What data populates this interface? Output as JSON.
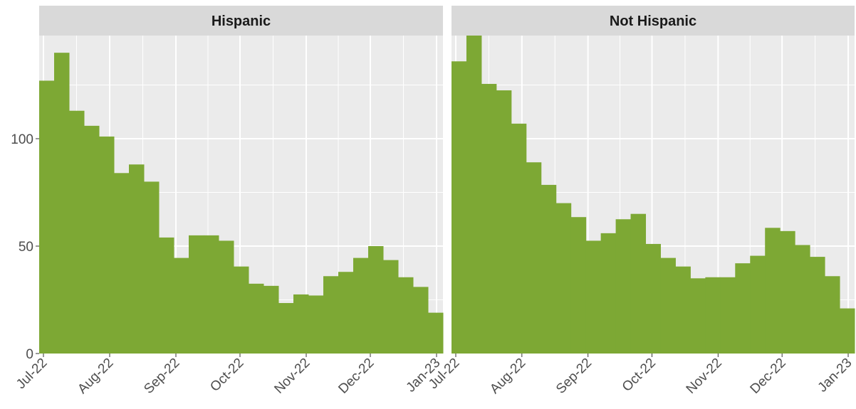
{
  "chart_data": [
    {
      "type": "histogram",
      "title": "Hispanic",
      "color": "#7da834",
      "bins": [
        -2,
        5,
        12,
        19,
        26,
        33,
        40,
        47,
        54,
        61,
        68,
        75,
        82,
        89,
        96,
        103,
        110,
        117,
        124,
        131,
        138,
        145,
        152,
        159,
        166,
        173,
        180,
        187
      ],
      "values": [
        127,
        140,
        113,
        106,
        101,
        84,
        88,
        80,
        54,
        44.5,
        55,
        55,
        52.5,
        40.5,
        32.5,
        31.5,
        23.5,
        27.5,
        27,
        36,
        38,
        44.5,
        50,
        43.5,
        35.5,
        31,
        19
      ],
      "xlim": [
        -2,
        187
      ],
      "xticks": [
        {
          "value": 0,
          "label": "Jul-22"
        },
        {
          "value": 31,
          "label": "Aug-22"
        },
        {
          "value": 62,
          "label": "Sep-22"
        },
        {
          "value": 92,
          "label": "Oct-22"
        },
        {
          "value": 123,
          "label": "Nov-22"
        },
        {
          "value": 153,
          "label": "Dec-22"
        },
        {
          "value": 184,
          "label": "Jan-23"
        }
      ],
      "ylim": [
        0,
        148
      ],
      "yticks": [
        0,
        50,
        100
      ],
      "grid": true
    },
    {
      "type": "histogram",
      "title": "Not Hispanic",
      "color": "#7da834",
      "bins": [
        -2,
        5,
        12,
        19,
        26,
        33,
        40,
        47,
        54,
        61,
        68,
        75,
        82,
        89,
        96,
        103,
        110,
        117,
        124,
        131,
        138,
        145,
        152,
        159,
        166,
        173,
        180,
        187
      ],
      "values": [
        136,
        148,
        125.5,
        122.5,
        107,
        89,
        78.5,
        70,
        63.5,
        52.5,
        56,
        62.5,
        65,
        51,
        44.5,
        40.5,
        35,
        35.5,
        35.5,
        42,
        45.5,
        58.5,
        57,
        50.5,
        45,
        36,
        21
      ],
      "xlim": [
        -2,
        187
      ],
      "xticks": [
        {
          "value": 0,
          "label": "Jul-22"
        },
        {
          "value": 31,
          "label": "Aug-22"
        },
        {
          "value": 62,
          "label": "Sep-22"
        },
        {
          "value": 92,
          "label": "Oct-22"
        },
        {
          "value": 123,
          "label": "Nov-22"
        },
        {
          "value": 153,
          "label": "Dec-22"
        },
        {
          "value": 184,
          "label": "Jan-23"
        }
      ],
      "ylim": [
        0,
        148
      ],
      "yticks": [
        0,
        50,
        100
      ],
      "grid": true
    }
  ]
}
